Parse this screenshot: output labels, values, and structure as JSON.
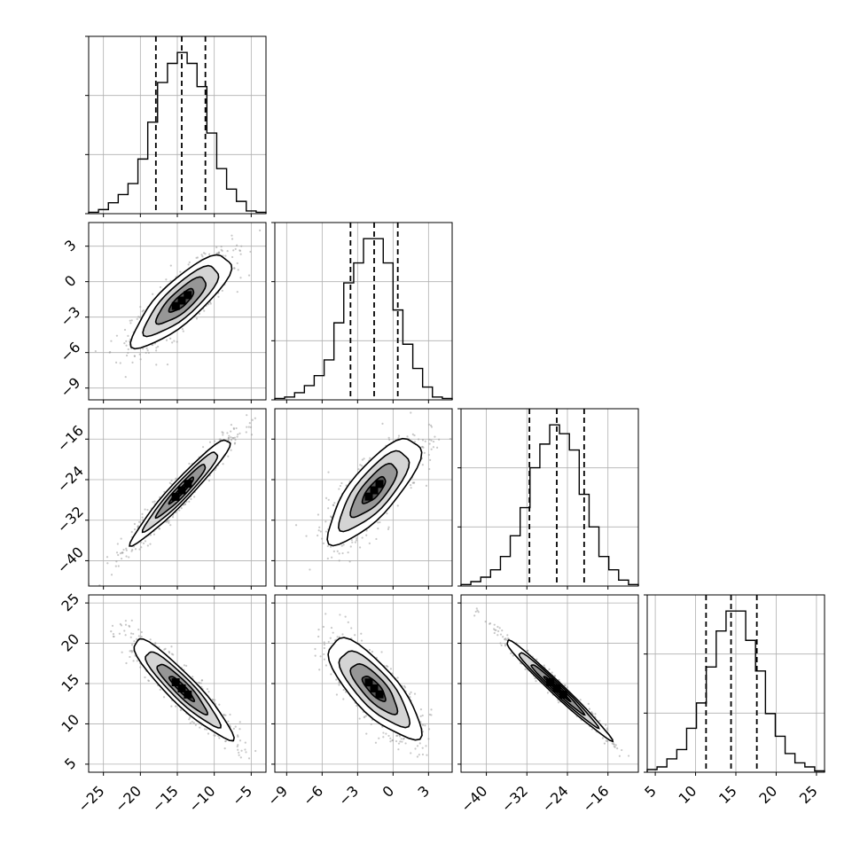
{
  "chart_data": {
    "type": "corner",
    "title": "",
    "parameters": [
      {
        "range": [
          -27,
          -3
        ],
        "ticks": [
          -25,
          -20,
          -15,
          -10,
          -5
        ],
        "tick_labels": [
          "−25",
          "−20",
          "−15",
          "−10",
          "−5"
        ],
        "quantiles": [
          -17.9,
          -14.4,
          -11.2
        ],
        "hist_bins": [
          -27,
          -25.67,
          -24.33,
          -23,
          -21.67,
          -20.33,
          -19,
          -17.67,
          -16.33,
          -15,
          -13.67,
          -12.33,
          -11,
          -9.67,
          -8.33,
          -7,
          -5.67,
          -4.33,
          -3
        ],
        "hist_counts": [
          1,
          3,
          8,
          14,
          22,
          40,
          67,
          96,
          110,
          118,
          110,
          93,
          59,
          33,
          18,
          9,
          2,
          1
        ]
      },
      {
        "range": [
          -10,
          5
        ],
        "ticks": [
          -9,
          -6,
          -3,
          0,
          3
        ],
        "tick_labels": [
          "−9",
          "−6",
          "−3",
          "0",
          "3"
        ],
        "quantiles": [
          -3.6,
          -1.6,
          0.4
        ],
        "hist_bins": [
          -10,
          -9.17,
          -8.33,
          -7.5,
          -6.67,
          -5.83,
          -5,
          -4.17,
          -3.33,
          -2.5,
          -1.67,
          -0.83,
          0,
          0.83,
          1.67,
          2.5,
          3.33,
          4.17,
          5
        ],
        "hist_counts": [
          1,
          2,
          5,
          10,
          17,
          28,
          54,
          82,
          96,
          113,
          113,
          96,
          63,
          39,
          22,
          9,
          2,
          1
        ]
      },
      {
        "range": [
          -45,
          -10
        ],
        "ticks": [
          -40,
          -32,
          -24,
          -16
        ],
        "tick_labels": [
          "−40",
          "−32",
          "−24",
          "−16"
        ],
        "quantiles": [
          -31.5,
          -26.1,
          -20.7
        ],
        "hist_bins": [
          -45,
          -43.06,
          -41.11,
          -39.17,
          -37.22,
          -35.28,
          -33.33,
          -31.39,
          -29.44,
          -27.5,
          -25.56,
          -23.61,
          -21.67,
          -19.72,
          -17.78,
          -15.83,
          -13.89,
          -11.94,
          -10
        ],
        "hist_counts": [
          1,
          3,
          6,
          11,
          20,
          34,
          53,
          80,
          96,
          109,
          103,
          92,
          62,
          40,
          20,
          11,
          4,
          1
        ]
      },
      {
        "range": [
          4,
          26
        ],
        "ticks": [
          5,
          10,
          15,
          20,
          25
        ],
        "tick_labels": [
          "5",
          "10",
          "15",
          "20",
          "25"
        ],
        "quantiles": [
          11.3,
          14.4,
          17.6
        ],
        "hist_bins": [
          4,
          5.22,
          6.44,
          7.67,
          8.89,
          10.11,
          11.33,
          12.56,
          13.78,
          15,
          16.22,
          17.44,
          18.67,
          19.89,
          21.11,
          22.33,
          23.56,
          24.78,
          26
        ],
        "hist_counts": [
          2,
          4,
          10,
          17,
          33,
          52,
          79,
          106,
          121,
          121,
          99,
          76,
          44,
          27,
          14,
          7,
          4,
          1
        ]
      }
    ],
    "pairs": [
      {
        "x": 0,
        "y": 1,
        "center": [
          -14.4,
          -1.6
        ],
        "sd": [
          3.35,
          1.95
        ],
        "corr": 0.82
      },
      {
        "x": 0,
        "y": 2,
        "center": [
          -14.4,
          -26.1
        ],
        "sd": [
          3.35,
          5.2
        ],
        "corr": 0.96
      },
      {
        "x": 1,
        "y": 2,
        "center": [
          -1.6,
          -26.1
        ],
        "sd": [
          1.95,
          5.2
        ],
        "corr": 0.78
      },
      {
        "x": 0,
        "y": 3,
        "center": [
          -14.4,
          14.4
        ],
        "sd": [
          3.35,
          3.1
        ],
        "corr": -0.92
      },
      {
        "x": 1,
        "y": 3,
        "center": [
          -1.6,
          14.4
        ],
        "sd": [
          1.95,
          3.1
        ],
        "corr": -0.78
      },
      {
        "x": 2,
        "y": 3,
        "center": [
          -26.1,
          14.4
        ],
        "sd": [
          5.2,
          3.1
        ],
        "corr": -0.985
      }
    ],
    "contour_levels": [
      0.5,
      1.0,
      1.5,
      2.0
    ],
    "grid": true,
    "quantile_line_style": "dashed",
    "colors": {
      "hist": "#000000",
      "points": "#9a9a9a",
      "grid": "#b0b0b0",
      "density": "#000000"
    }
  }
}
